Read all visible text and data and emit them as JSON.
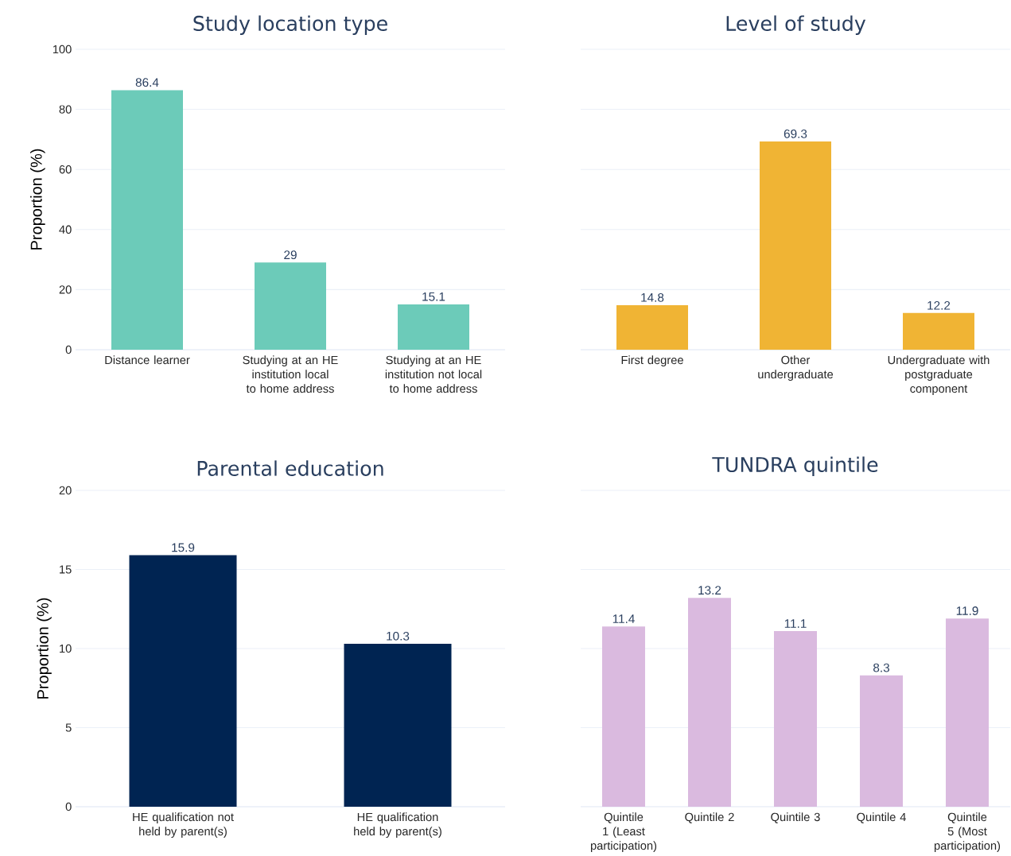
{
  "chart_data": [
    {
      "type": "bar",
      "title": "Study location type",
      "ylabel": "Proportion (%)",
      "categories": [
        "Distance learner",
        "Studying at an HE institution local to home address",
        "Studying at an HE institution not local to home address"
      ],
      "values": [
        86.4,
        29,
        15.1
      ],
      "color": "#6ccbb9",
      "ylim": [
        0,
        100
      ],
      "yticks": [
        0,
        20,
        40,
        60,
        80,
        100
      ],
      "grid": "y",
      "data_labels": true
    },
    {
      "type": "bar",
      "title": "Level of study",
      "categories": [
        "First degree",
        "Other undergraduate",
        "Undergraduate with postgraduate component"
      ],
      "values": [
        14.8,
        69.3,
        12.2
      ],
      "color": "#f0b434",
      "ylim": [
        0,
        100
      ],
      "yticks": [
        0,
        20,
        40,
        60,
        80,
        100
      ],
      "grid": "y",
      "data_labels": true,
      "tick_labels": "x"
    },
    {
      "type": "bar",
      "title": "Parental education",
      "ylabel": "Proportion (%)",
      "categories": [
        "HE qualification not held by parent(s)",
        "HE qualification held by parent(s)"
      ],
      "values": [
        15.9,
        10.3
      ],
      "color": "#002452",
      "ylim": [
        0,
        20
      ],
      "yticks": [
        0,
        5,
        10,
        15,
        20
      ],
      "grid": "y",
      "data_labels": true
    },
    {
      "type": "bar",
      "title": "TUNDRA quintile",
      "categories": [
        "Quintile 1 (Least participation)",
        "Quintile 2",
        "Quintile 3",
        "Quintile 4",
        "Quintile 5 (Most participation)"
      ],
      "values": [
        11.4,
        13.2,
        11.1,
        8.3,
        11.9
      ],
      "color": "#dabadf",
      "ylim": [
        0,
        20
      ],
      "yticks": [
        0,
        5,
        10,
        15,
        20
      ],
      "grid": "y",
      "data_labels": true,
      "tick_labels": "x"
    }
  ]
}
